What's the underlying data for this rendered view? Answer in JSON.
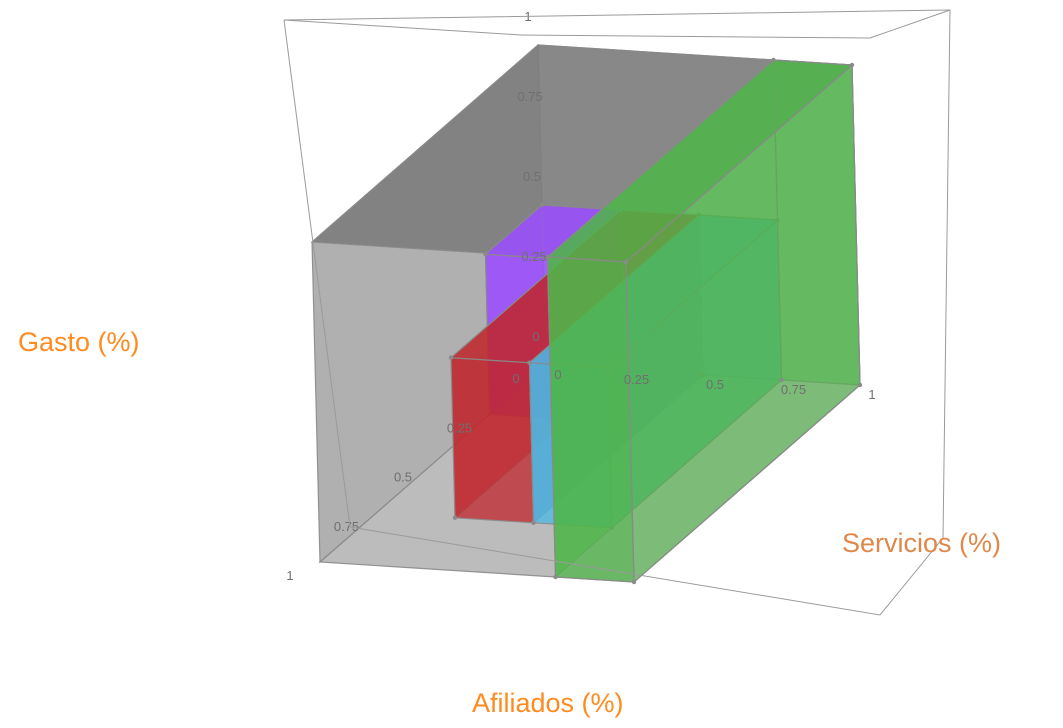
{
  "chart_data": {
    "type": "3d-box",
    "xlabel": "Afiliados (%)",
    "ylabel": "Gasto (%)",
    "zlabel": "Servicios (%)",
    "axes": {
      "x": {
        "range": [
          0,
          1
        ],
        "ticks": [
          "0",
          "0.25",
          "0.5",
          "0.75",
          "1"
        ]
      },
      "y": {
        "range": [
          0,
          1
        ],
        "ticks": [
          "0",
          "0.25",
          "0.5",
          "0.75",
          "1"
        ]
      },
      "z": {
        "range": [
          0,
          1
        ],
        "ticks": [
          "0",
          "0.25",
          "0.5",
          "0.75",
          "1"
        ]
      }
    },
    "boxes": [
      {
        "color": "#9b4dff",
        "x": [
          0.0,
          0.25
        ],
        "y": [
          0.0,
          0.5
        ],
        "z": [
          0.0,
          0.25
        ]
      },
      {
        "color": "#c0262c",
        "x": [
          0.25,
          0.5
        ],
        "y": [
          0.0,
          0.5
        ],
        "z": [
          0.0,
          0.75
        ]
      },
      {
        "color": "#4bb8e6",
        "x": [
          0.5,
          0.75
        ],
        "y": [
          0.0,
          0.5
        ],
        "z": [
          0.0,
          0.75
        ]
      },
      {
        "color": "#4fb548",
        "x": [
          0.75,
          1.0
        ],
        "y": [
          0.0,
          1.0
        ],
        "z": [
          0.0,
          1.0
        ]
      },
      {
        "color": "#a8a8a8",
        "x": [
          0.0,
          1.0
        ],
        "y": [
          0.0,
          1.0
        ],
        "z": [
          0.0,
          1.0
        ]
      }
    ],
    "grid": false,
    "legend": "none"
  }
}
